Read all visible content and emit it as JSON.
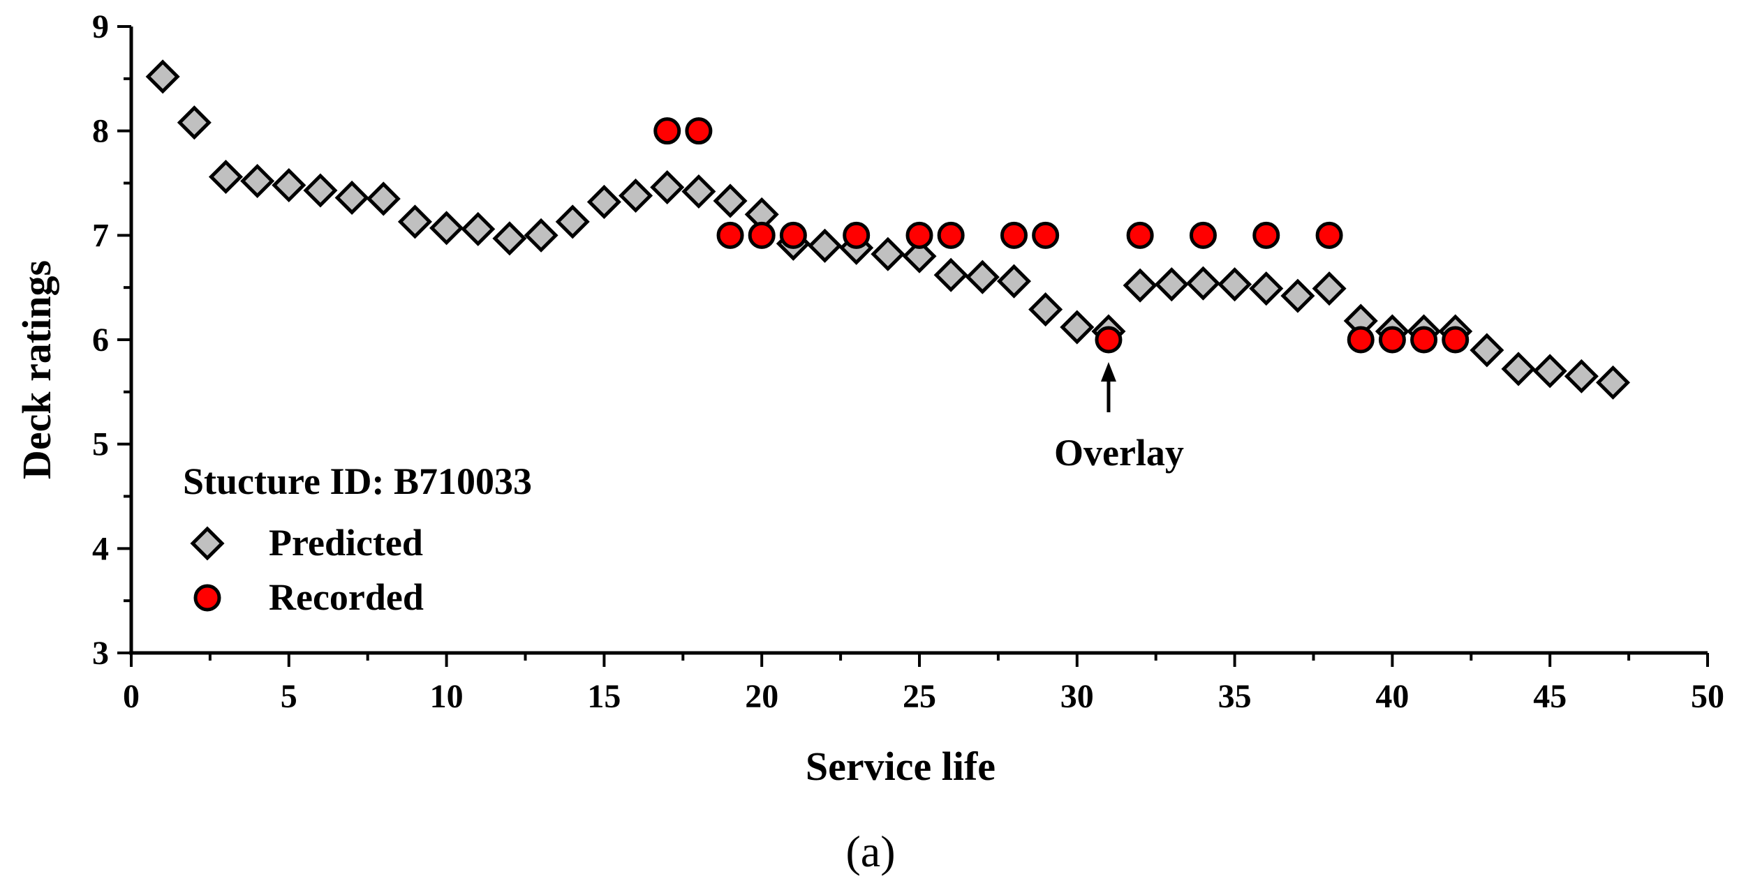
{
  "chart_data": {
    "type": "scatter",
    "title": "",
    "xlabel": "Service life",
    "ylabel": "Deck ratings",
    "xlim": [
      0,
      50
    ],
    "ylim": [
      3,
      9
    ],
    "xticks": [
      0,
      5,
      10,
      15,
      20,
      25,
      30,
      35,
      40,
      45,
      50
    ],
    "yticks": [
      3,
      4,
      5,
      6,
      7,
      8,
      9
    ],
    "legend_title": "Stucture ID: B710033",
    "legend_position": "bottom-left",
    "series": [
      {
        "name": "Predicted",
        "marker": "diamond",
        "color": "#c0c0c0",
        "x": [
          1,
          2,
          3,
          4,
          5,
          6,
          7,
          8,
          9,
          10,
          11,
          12,
          13,
          14,
          15,
          16,
          17,
          18,
          19,
          20,
          21,
          22,
          23,
          24,
          25,
          26,
          27,
          28,
          29,
          30,
          31,
          32,
          33,
          34,
          35,
          36,
          37,
          38,
          39,
          40,
          41,
          42,
          43,
          44,
          45,
          46,
          47
        ],
        "y": [
          8.52,
          8.08,
          7.56,
          7.52,
          7.48,
          7.43,
          7.36,
          7.35,
          7.13,
          7.07,
          7.06,
          6.97,
          7.0,
          7.13,
          7.32,
          7.38,
          7.46,
          7.42,
          7.33,
          7.2,
          6.92,
          6.9,
          6.88,
          6.82,
          6.8,
          6.62,
          6.6,
          6.56,
          6.29,
          6.12,
          6.08,
          6.52,
          6.53,
          6.54,
          6.53,
          6.49,
          6.42,
          6.49,
          6.18,
          6.08,
          6.08,
          6.08,
          5.9,
          5.72,
          5.7,
          5.65,
          5.59
        ]
      },
      {
        "name": "Recorded",
        "marker": "circle",
        "color": "#ff0000",
        "x": [
          17,
          18,
          19,
          20,
          21,
          23,
          25,
          26,
          28,
          29,
          31,
          32,
          34,
          36,
          38,
          39,
          40,
          41,
          42
        ],
        "y": [
          8,
          8,
          7,
          7,
          7,
          7,
          7,
          7,
          7,
          7,
          6,
          7,
          7,
          7,
          7,
          6,
          6,
          6,
          6
        ]
      }
    ],
    "annotations": [
      {
        "text": "Overlay",
        "x": 31,
        "y": 6,
        "arrow": "up"
      }
    ]
  },
  "caption": "(a)"
}
